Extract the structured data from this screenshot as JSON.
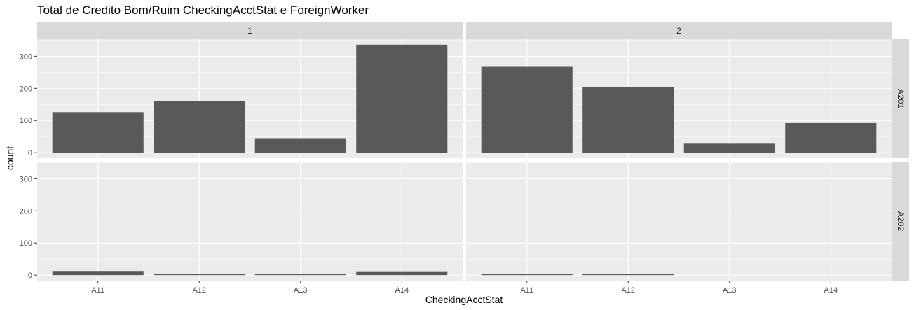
{
  "chart_data": {
    "type": "bar",
    "title": "Total de Credito Bom/Ruim CheckingAcctStat e ForeignWorker",
    "xlabel": "CheckingAcctStat",
    "ylabel": "count",
    "categories": [
      "A11",
      "A12",
      "A13",
      "A14"
    ],
    "ylim": [
      0,
      350
    ],
    "yticks": [
      0,
      100,
      200,
      300
    ],
    "col_facets": [
      "1",
      "2"
    ],
    "row_facets": [
      "A201",
      "A202"
    ],
    "panels": [
      {
        "col": "1",
        "row": "A201",
        "values": [
          126,
          161,
          45,
          336
        ]
      },
      {
        "col": "2",
        "row": "A201",
        "values": [
          267,
          205,
          28,
          92
        ]
      },
      {
        "col": "1",
        "row": "A202",
        "values": [
          13,
          4,
          4,
          12
        ]
      },
      {
        "col": "2",
        "row": "A202",
        "values": [
          4,
          4,
          0,
          0
        ]
      }
    ],
    "bar_color": "#595959",
    "panel_background": "#ebebeb",
    "strip_background": "#d9d9d9",
    "grid": true
  }
}
